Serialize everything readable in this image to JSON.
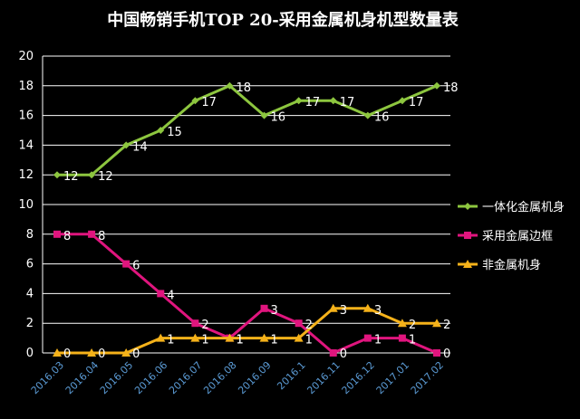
{
  "chart_data": {
    "type": "line",
    "title": "中国畅销手机TOP 20-采用金属机身机型数量表",
    "xlabel": "",
    "ylabel": "",
    "ylim": [
      0,
      20
    ],
    "yticks": [
      "0",
      "2",
      "4",
      "6",
      "8",
      "10",
      "12",
      "14",
      "16",
      "18",
      "20"
    ],
    "grid": true,
    "legend_position": "right",
    "categories": [
      "2016.03",
      "2016.04",
      "2016.05",
      "2016.06",
      "2016.07",
      "2016.08",
      "2016.09",
      "2016.1",
      "2016.11",
      "2016.12",
      "2017.01",
      "2017.02"
    ],
    "series": [
      {
        "name": "一体化金属机身",
        "color": "#8dc63f",
        "marker": "diamond",
        "values": [
          12,
          12,
          14,
          15,
          17,
          18,
          16,
          17,
          17,
          16,
          17,
          18
        ],
        "labels": [
          "12",
          "12",
          "14",
          "15",
          "17",
          "18",
          "16",
          "17",
          "17",
          "16",
          "17",
          "18"
        ]
      },
      {
        "name": "采用金属边框",
        "color": "#e0157e",
        "marker": "square",
        "values": [
          8,
          8,
          6,
          4,
          2,
          1,
          3,
          2,
          0,
          1,
          1,
          0
        ],
        "labels": [
          "8",
          "8",
          "6",
          "4",
          "2",
          "1",
          "3",
          "2",
          "0",
          "1",
          "1",
          "0"
        ]
      },
      {
        "name": "非金属机身",
        "color": "#f5b21a",
        "marker": "triangle",
        "values": [
          0,
          0,
          0,
          1,
          1,
          1,
          1,
          1,
          3,
          3,
          2,
          2
        ],
        "labels": [
          "0",
          "0",
          "0",
          "1",
          "1",
          "1",
          "1",
          "1",
          "3",
          "3",
          "2",
          "2"
        ]
      }
    ]
  }
}
